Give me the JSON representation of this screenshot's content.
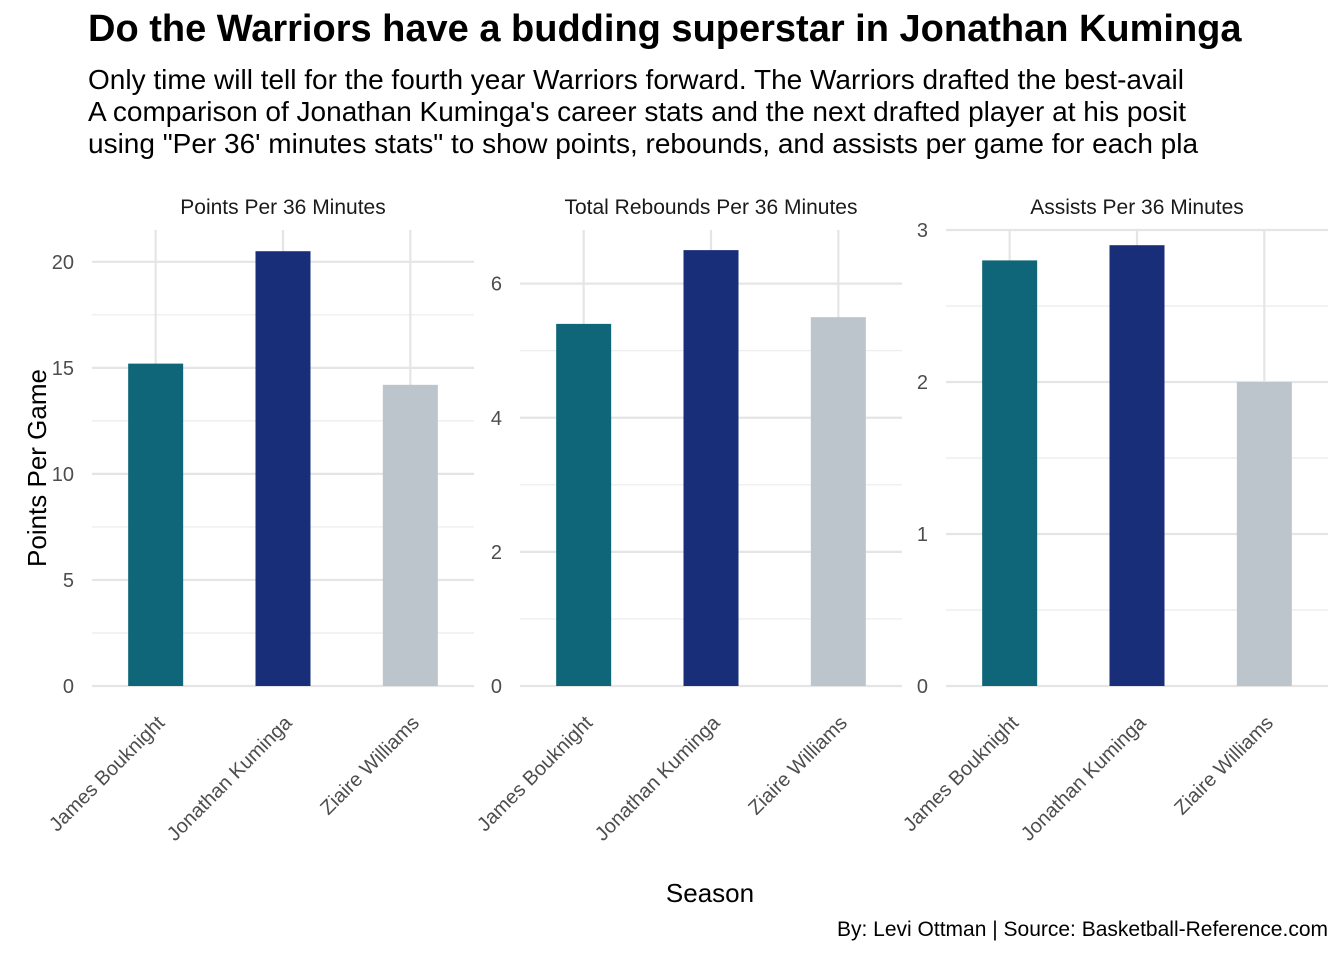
{
  "title": "Do the Warriors have a budding superstar in Jonathan Kuminga",
  "subtitle": "Only time will tell for the fourth year Warriors forward. The Warriors drafted the best-avail\nA comparison of Jonathan Kuminga's career stats and the next drafted player at his posit\nusing \"Per 36' minutes stats\" to show points, rebounds, and assists per game for each pla",
  "caption": "By: Levi Ottman  |  Source: Basketball-Reference.com",
  "chart_data": {
    "type": "bar",
    "xlabel": "Season",
    "ylabel": "Points Per Game",
    "categories": [
      "James Bouknight",
      "Jonathan Kuminga",
      "Ziaire Williams"
    ],
    "colors": [
      "#0E6678",
      "#192E78",
      "#BCC4CC"
    ],
    "grid": true,
    "panels": [
      {
        "title": "Points Per 36 Minutes",
        "values": [
          15.2,
          20.5,
          14.2
        ],
        "ylim": [
          0,
          21.5
        ],
        "yticks": [
          0,
          5,
          10,
          15,
          20
        ]
      },
      {
        "title": "Total Rebounds Per 36 Minutes",
        "values": [
          5.4,
          6.5,
          5.5
        ],
        "ylim": [
          0,
          6.8
        ],
        "yticks": [
          0,
          2,
          4,
          6
        ]
      },
      {
        "title": "Assists Per 36 Minutes",
        "values": [
          2.8,
          2.9,
          2.0
        ],
        "ylim": [
          0,
          3.0
        ],
        "yticks": [
          0,
          1,
          2,
          3
        ]
      }
    ]
  }
}
